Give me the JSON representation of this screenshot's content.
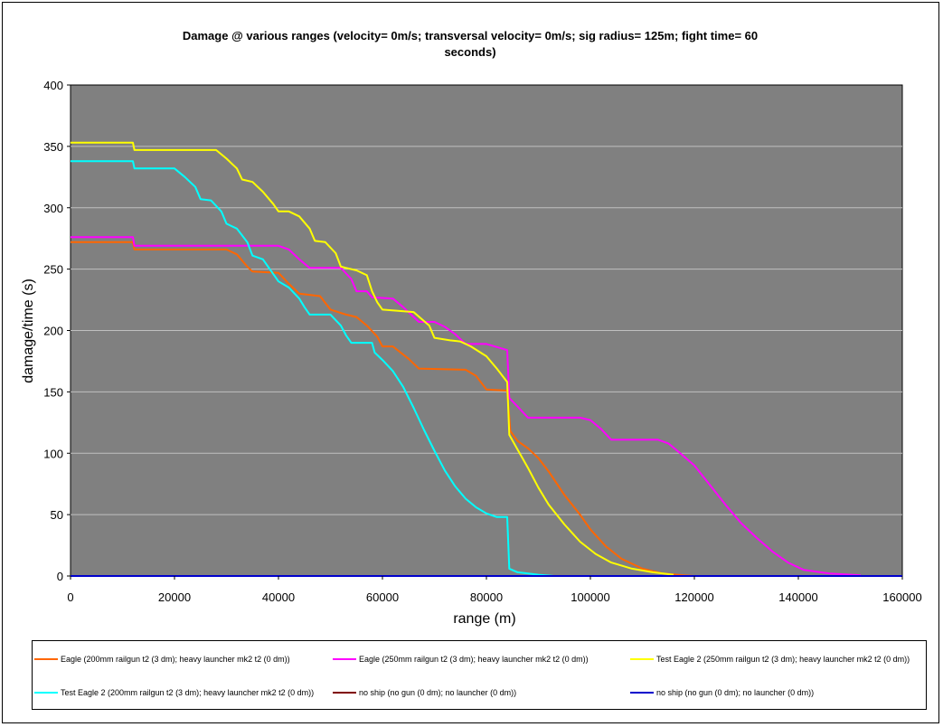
{
  "chart_data": {
    "type": "line",
    "title_line1": "Damage @ various ranges (velocity= 0m/s; transversal velocity= 0m/s; sig radius= 125m; fight time= 60",
    "title_line2": "seconds)",
    "xlabel": "range (m)",
    "ylabel": "damage/time (s)",
    "xlim": [
      0,
      160000
    ],
    "ylim": [
      0,
      400
    ],
    "xticks": [
      "0",
      "20000",
      "40000",
      "60000",
      "80000",
      "100000",
      "120000",
      "140000",
      "160000"
    ],
    "yticks": [
      "0",
      "50",
      "100",
      "150",
      "200",
      "250",
      "300",
      "350",
      "400"
    ],
    "plot_background": "#808080",
    "grid": "horizontal",
    "legend_position": "bottom",
    "series": [
      {
        "name": "Eagle (200mm railgun t2 (3 dm); heavy launcher mk2 t2 (0 dm))",
        "color": "#ff6600",
        "points": [
          [
            0,
            272
          ],
          [
            12000,
            272
          ],
          [
            12300,
            266
          ],
          [
            30000,
            266
          ],
          [
            32000,
            262
          ],
          [
            34000,
            252
          ],
          [
            35000,
            248
          ],
          [
            40000,
            247
          ],
          [
            42000,
            238
          ],
          [
            44000,
            230
          ],
          [
            48000,
            228
          ],
          [
            50000,
            217
          ],
          [
            53000,
            213
          ],
          [
            55000,
            211
          ],
          [
            57000,
            204
          ],
          [
            59000,
            195
          ],
          [
            60000,
            187
          ],
          [
            62000,
            187
          ],
          [
            65000,
            177
          ],
          [
            67000,
            169
          ],
          [
            76000,
            168
          ],
          [
            78000,
            163
          ],
          [
            80000,
            152
          ],
          [
            84000,
            151
          ],
          [
            84600,
            118
          ],
          [
            86000,
            110
          ],
          [
            88000,
            104
          ],
          [
            90000,
            96
          ],
          [
            92000,
            85
          ],
          [
            95000,
            66
          ],
          [
            98000,
            50
          ],
          [
            100000,
            38
          ],
          [
            103000,
            24
          ],
          [
            106000,
            14
          ],
          [
            110000,
            6
          ],
          [
            114000,
            2
          ],
          [
            118000,
            0.5
          ],
          [
            120000,
            0
          ]
        ]
      },
      {
        "name": "Eagle (250mm railgun t2 (3 dm); heavy launcher mk2 t2 (0 dm))",
        "color": "#ff00ff",
        "points": [
          [
            0,
            276
          ],
          [
            12000,
            276
          ],
          [
            12300,
            269
          ],
          [
            40000,
            269
          ],
          [
            42000,
            266
          ],
          [
            44000,
            258
          ],
          [
            46000,
            251
          ],
          [
            52000,
            251
          ],
          [
            54000,
            242
          ],
          [
            55000,
            232
          ],
          [
            57000,
            232
          ],
          [
            58000,
            227
          ],
          [
            62000,
            226
          ],
          [
            64000,
            219
          ],
          [
            66000,
            211
          ],
          [
            67000,
            207
          ],
          [
            70000,
            207
          ],
          [
            72000,
            203
          ],
          [
            74000,
            197
          ],
          [
            76000,
            189
          ],
          [
            80000,
            189
          ],
          [
            84000,
            184
          ],
          [
            84400,
            145
          ],
          [
            86000,
            138
          ],
          [
            88000,
            129
          ],
          [
            98000,
            129
          ],
          [
            100000,
            127
          ],
          [
            102000,
            120
          ],
          [
            104000,
            111
          ],
          [
            113000,
            111
          ],
          [
            115000,
            108
          ],
          [
            117000,
            101
          ],
          [
            120000,
            90
          ],
          [
            123000,
            74
          ],
          [
            126000,
            58
          ],
          [
            129000,
            43
          ],
          [
            132000,
            31
          ],
          [
            135000,
            20
          ],
          [
            138000,
            11
          ],
          [
            141000,
            5
          ],
          [
            146000,
            2
          ],
          [
            152000,
            0.5
          ]
        ]
      },
      {
        "name": "Test Eagle 2 (250mm railgun t2 (3 dm); heavy launcher mk2 t2 (0 dm))",
        "color": "#ffff00",
        "points": [
          [
            0,
            353
          ],
          [
            12000,
            353
          ],
          [
            12300,
            347
          ],
          [
            28000,
            347
          ],
          [
            30000,
            340
          ],
          [
            32000,
            332
          ],
          [
            33000,
            323
          ],
          [
            35000,
            321
          ],
          [
            37000,
            313
          ],
          [
            39000,
            303
          ],
          [
            40000,
            297
          ],
          [
            42000,
            297
          ],
          [
            44000,
            293
          ],
          [
            46000,
            283
          ],
          [
            47000,
            273
          ],
          [
            49000,
            272
          ],
          [
            51000,
            263
          ],
          [
            52000,
            252
          ],
          [
            55000,
            249
          ],
          [
            57000,
            245
          ],
          [
            58000,
            232
          ],
          [
            59000,
            223
          ],
          [
            60000,
            217
          ],
          [
            66000,
            215
          ],
          [
            69000,
            204
          ],
          [
            70000,
            194
          ],
          [
            73000,
            192
          ],
          [
            75000,
            191
          ],
          [
            77000,
            187
          ],
          [
            80000,
            179
          ],
          [
            82000,
            169
          ],
          [
            84000,
            158
          ],
          [
            84400,
            115
          ],
          [
            86000,
            103
          ],
          [
            88000,
            88
          ],
          [
            90000,
            72
          ],
          [
            92000,
            58
          ],
          [
            95000,
            42
          ],
          [
            98000,
            28
          ],
          [
            101000,
            18
          ],
          [
            104000,
            11
          ],
          [
            108000,
            6
          ],
          [
            112000,
            3
          ],
          [
            116000,
            1
          ]
        ]
      },
      {
        "name": "Test Eagle 2 (200mm railgun t2 (3 dm); heavy launcher mk2 t2 (0 dm))",
        "color": "#00ffff",
        "points": [
          [
            0,
            338
          ],
          [
            12000,
            338
          ],
          [
            12300,
            332
          ],
          [
            20000,
            332
          ],
          [
            22000,
            325
          ],
          [
            24000,
            317
          ],
          [
            25000,
            307
          ],
          [
            27000,
            306
          ],
          [
            29000,
            297
          ],
          [
            30000,
            287
          ],
          [
            32000,
            283
          ],
          [
            34000,
            272
          ],
          [
            35000,
            261
          ],
          [
            37000,
            258
          ],
          [
            38000,
            252
          ],
          [
            40000,
            240
          ],
          [
            42000,
            235
          ],
          [
            44000,
            226
          ],
          [
            45000,
            219
          ],
          [
            46000,
            213
          ],
          [
            50000,
            213
          ],
          [
            52000,
            204
          ],
          [
            53000,
            196
          ],
          [
            54000,
            190
          ],
          [
            58000,
            190
          ],
          [
            58500,
            182
          ],
          [
            60000,
            176
          ],
          [
            62000,
            167
          ],
          [
            64000,
            154
          ],
          [
            66000,
            137
          ],
          [
            68000,
            119
          ],
          [
            70000,
            102
          ],
          [
            72000,
            86
          ],
          [
            74000,
            73
          ],
          [
            76000,
            63
          ],
          [
            78000,
            56
          ],
          [
            80000,
            51
          ],
          [
            82000,
            48
          ],
          [
            84000,
            48
          ],
          [
            84400,
            6
          ],
          [
            86000,
            3
          ],
          [
            90000,
            1
          ],
          [
            93000,
            0
          ]
        ]
      },
      {
        "name": "no ship (no gun (0 dm); no launcher (0 dm))",
        "color": "#800000",
        "points": [
          [
            0,
            0
          ],
          [
            160000,
            0
          ]
        ]
      },
      {
        "name": "no ship (no gun (0 dm); no launcher (0 dm))",
        "color": "#0000cc",
        "points": [
          [
            0,
            0
          ],
          [
            160000,
            0
          ]
        ]
      }
    ]
  }
}
